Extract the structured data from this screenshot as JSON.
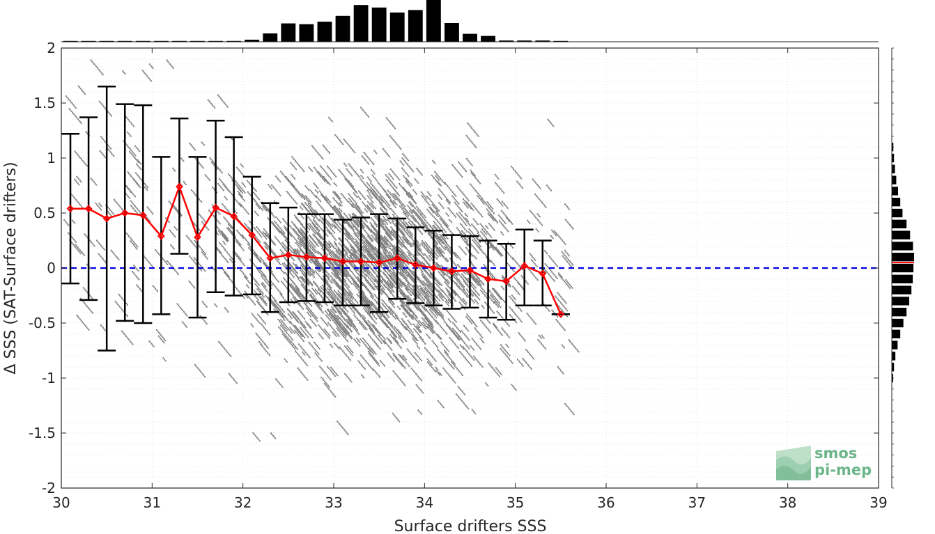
{
  "chart_data": {
    "type": "scatter",
    "xlabel": "Surface drifters SSS",
    "ylabel": "Δ SSS (SAT-Surface drifters)",
    "xlim": [
      30,
      39
    ],
    "ylim": [
      -2,
      2
    ],
    "x_ticks": [
      "30",
      "31",
      "32",
      "33",
      "34",
      "35",
      "36",
      "37",
      "38",
      "39"
    ],
    "y_ticks": [
      "2",
      "1.5",
      "1",
      "0.5",
      "0",
      "-0.5",
      "-1",
      "-1.5",
      "-2"
    ],
    "grid": true,
    "zero_line": {
      "y": 0,
      "color": "#0000dd",
      "style": "dashed"
    },
    "scatter_color": "#808080",
    "binned_stats": {
      "color_mean": "#ff0000",
      "color_error": "#000000",
      "x": [
        30.1,
        30.3,
        30.5,
        30.7,
        30.9,
        31.1,
        31.3,
        31.5,
        31.7,
        31.9,
        32.1,
        32.3,
        32.5,
        32.7,
        32.9,
        33.1,
        33.3,
        33.5,
        33.7,
        33.9,
        34.1,
        34.3,
        34.5,
        34.7,
        34.9,
        35.1,
        35.3,
        35.5
      ],
      "mean": [
        0.54,
        0.54,
        0.45,
        0.5,
        0.48,
        0.29,
        0.74,
        0.28,
        0.55,
        0.47,
        0.3,
        0.09,
        0.12,
        0.1,
        0.09,
        0.06,
        0.06,
        0.05,
        0.09,
        0.03,
        0.0,
        -0.03,
        -0.02,
        -0.1,
        -0.12,
        0.02,
        -0.05,
        -0.42
      ],
      "lower": [
        -0.14,
        -0.29,
        -0.75,
        -0.48,
        -0.5,
        -0.42,
        0.13,
        -0.45,
        -0.22,
        -0.25,
        -0.24,
        -0.4,
        -0.31,
        -0.3,
        -0.31,
        -0.34,
        -0.34,
        -0.4,
        -0.28,
        -0.32,
        -0.34,
        -0.37,
        -0.36,
        -0.45,
        -0.47,
        -0.34,
        -0.34,
        -0.42
      ],
      "upper": [
        1.22,
        1.37,
        1.65,
        1.49,
        1.48,
        1.01,
        1.36,
        1.01,
        1.34,
        1.19,
        0.83,
        0.59,
        0.55,
        0.49,
        0.49,
        0.44,
        0.46,
        0.49,
        0.45,
        0.37,
        0.34,
        0.3,
        0.29,
        0.25,
        0.22,
        0.35,
        0.25,
        -0.42
      ]
    },
    "top_histogram": {
      "bin_centers": [
        30.1,
        30.3,
        30.5,
        30.7,
        30.9,
        31.1,
        31.3,
        31.5,
        31.7,
        31.9,
        32.1,
        32.3,
        32.5,
        32.7,
        32.9,
        33.1,
        33.3,
        33.5,
        33.7,
        33.9,
        34.1,
        34.3,
        34.5,
        34.7,
        34.9,
        35.1,
        35.3,
        35.5
      ],
      "relative_counts": [
        0.02,
        0.02,
        0.02,
        0.02,
        0.02,
        0.02,
        0.02,
        0.02,
        0.02,
        0.02,
        0.05,
        0.2,
        0.44,
        0.42,
        0.48,
        0.62,
        0.88,
        0.82,
        0.7,
        0.76,
        1.0,
        0.45,
        0.19,
        0.14,
        0.03,
        0.03,
        0.03,
        0.02
      ],
      "color": "#000000"
    },
    "right_histogram": {
      "bin_centers": [
        1.1,
        1.0,
        0.9,
        0.8,
        0.7,
        0.6,
        0.5,
        0.4,
        0.3,
        0.2,
        0.1,
        0.0,
        -0.1,
        -0.2,
        -0.3,
        -0.4,
        -0.5,
        -0.6,
        -0.7,
        -0.8,
        -0.9,
        -1.0
      ],
      "relative_counts": [
        0.07,
        0.1,
        0.14,
        0.2,
        0.28,
        0.38,
        0.48,
        0.66,
        0.82,
        0.95,
        1.0,
        0.97,
        0.94,
        0.88,
        0.78,
        0.66,
        0.52,
        0.38,
        0.26,
        0.16,
        0.1,
        0.06
      ],
      "color": "#000000",
      "median_line": {
        "y": 0.05,
        "color": "#ff0000"
      }
    }
  },
  "logo": {
    "line1": "smos",
    "line2": "pi-mep",
    "color": "#3a9a5e"
  }
}
